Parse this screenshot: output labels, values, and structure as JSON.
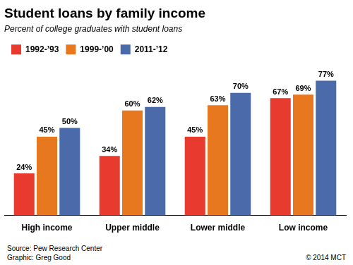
{
  "chart_data": {
    "type": "bar",
    "title": "Student loans by family income",
    "subtitle": "Percent of college graduates with student loans",
    "categories": [
      "High income",
      "Upper middle",
      "Lower middle",
      "Low income"
    ],
    "series": [
      {
        "name": "1992-’93",
        "color": "#e83a2e",
        "values": [
          24,
          34,
          45,
          67
        ],
        "value_labels": [
          "24%",
          "34%",
          "45%",
          "67%"
        ]
      },
      {
        "name": "1999-’00",
        "color": "#e87820",
        "values": [
          45,
          60,
          63,
          69
        ],
        "value_labels": [
          "45%",
          "60%",
          "63%",
          "69%"
        ]
      },
      {
        "name": "2011-’12",
        "color": "#4a6aaa",
        "values": [
          50,
          62,
          70,
          77
        ],
        "value_labels": [
          "50%",
          "62%",
          "70%",
          "77%"
        ]
      }
    ],
    "ylim": [
      0,
      88
    ],
    "grid": false,
    "legend": "top-left",
    "data_labels": true,
    "tick_labels": "x",
    "annotations": [
      "Source: Pew Research Center\nGraphic: Greg Good",
      "© 2014 MCT"
    ]
  }
}
